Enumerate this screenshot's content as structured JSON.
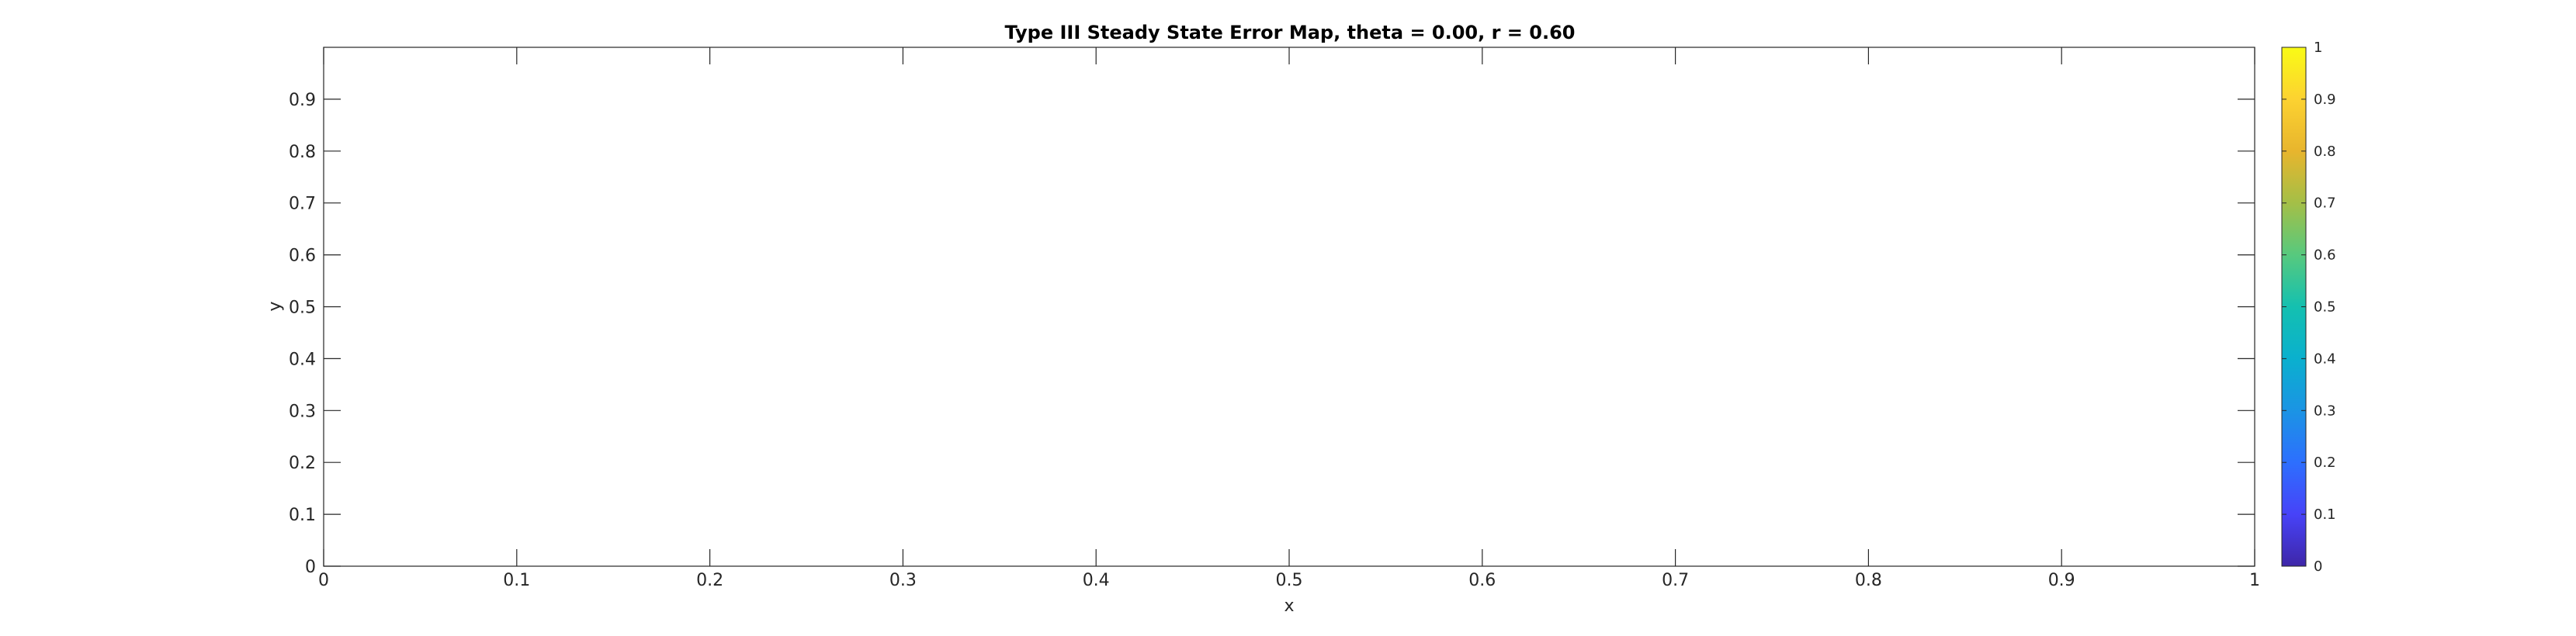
{
  "chart_data": {
    "type": "heatmap",
    "title": "Type III Steady State Error Map, theta = 0.00, r = 0.60",
    "xlabel": "x",
    "ylabel": "y",
    "xlim": [
      0,
      1
    ],
    "ylim": [
      0,
      1
    ],
    "x_ticks": [
      "0",
      "0.1",
      "0.2",
      "0.3",
      "0.4",
      "0.5",
      "0.6",
      "0.7",
      "0.8",
      "0.9",
      "1"
    ],
    "y_ticks": [
      "0",
      "0.1",
      "0.2",
      "0.3",
      "0.4",
      "0.5",
      "0.6",
      "0.7",
      "0.8",
      "0.9"
    ],
    "values": [],
    "grid": false,
    "colorbar": {
      "position": "right",
      "colormap": "parula",
      "clim": [
        0,
        1
      ],
      "ticks": [
        "0",
        "0.1",
        "0.2",
        "0.3",
        "0.4",
        "0.5",
        "0.6",
        "0.7",
        "0.8",
        "0.9",
        "1"
      ],
      "colors": [
        "#3e26a8",
        "#4743f8",
        "#2d6ffe",
        "#1b94e4",
        "#0ab0ce",
        "#14c0b0",
        "#57c97e",
        "#a4bf47",
        "#e8b52d",
        "#fcd231",
        "#f9fb15"
      ]
    }
  }
}
